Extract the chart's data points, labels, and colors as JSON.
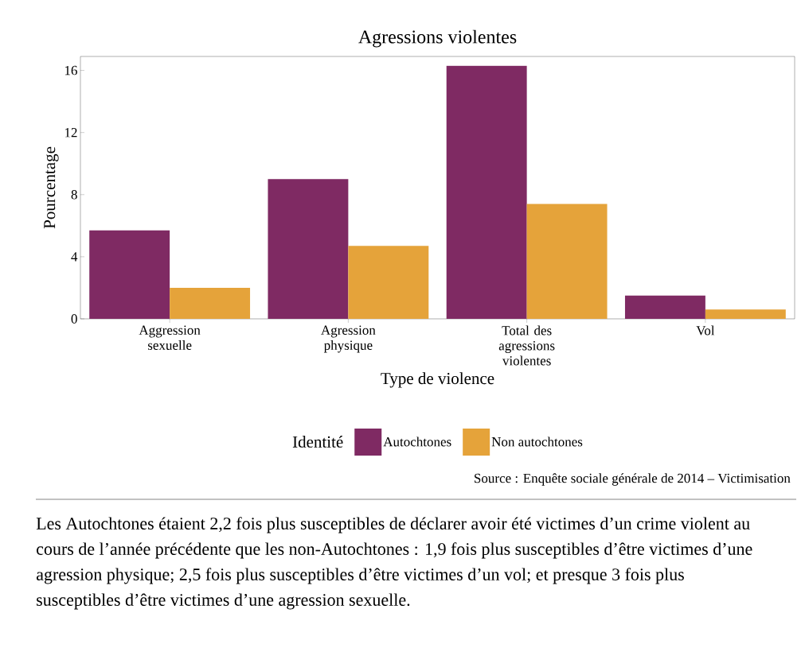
{
  "chart_data": {
    "type": "bar",
    "title": "Agressions violentes",
    "xlabel": "Type de violence",
    "ylabel": "Pourcentage",
    "categories": [
      "Aggression sexuelle",
      "Agression physique",
      "Total des agressions violentes",
      "Vol"
    ],
    "series": [
      {
        "name": "Autochtones",
        "color": "#7f2a63",
        "values": [
          5.7,
          9.0,
          16.3,
          1.5
        ]
      },
      {
        "name": "Non autochtones",
        "color": "#e5a33a",
        "values": [
          2.0,
          4.7,
          7.4,
          0.6
        ]
      }
    ],
    "ylim": [
      0,
      16.9
    ],
    "yticks": [
      0,
      4,
      8,
      12,
      16
    ],
    "legend": "bottom",
    "legend_title": "Identité",
    "annotations": [
      "Source : Enquête sociale générale de 2014 – Victimisation",
      "Les Autochtones étaient 2,2 fois plus susceptibles de déclarer avoir été victimes d’un crime violent au cours de l’année précédente que les non-Autochtones : 1,9 fois plus susceptibles d’être victimes d’une agression physique; 2,5 fois plus susceptibles d’être victimes d’un vol; et presque 3 fois plus susceptibles d’être victimes d’une agression sexuelle."
    ]
  }
}
